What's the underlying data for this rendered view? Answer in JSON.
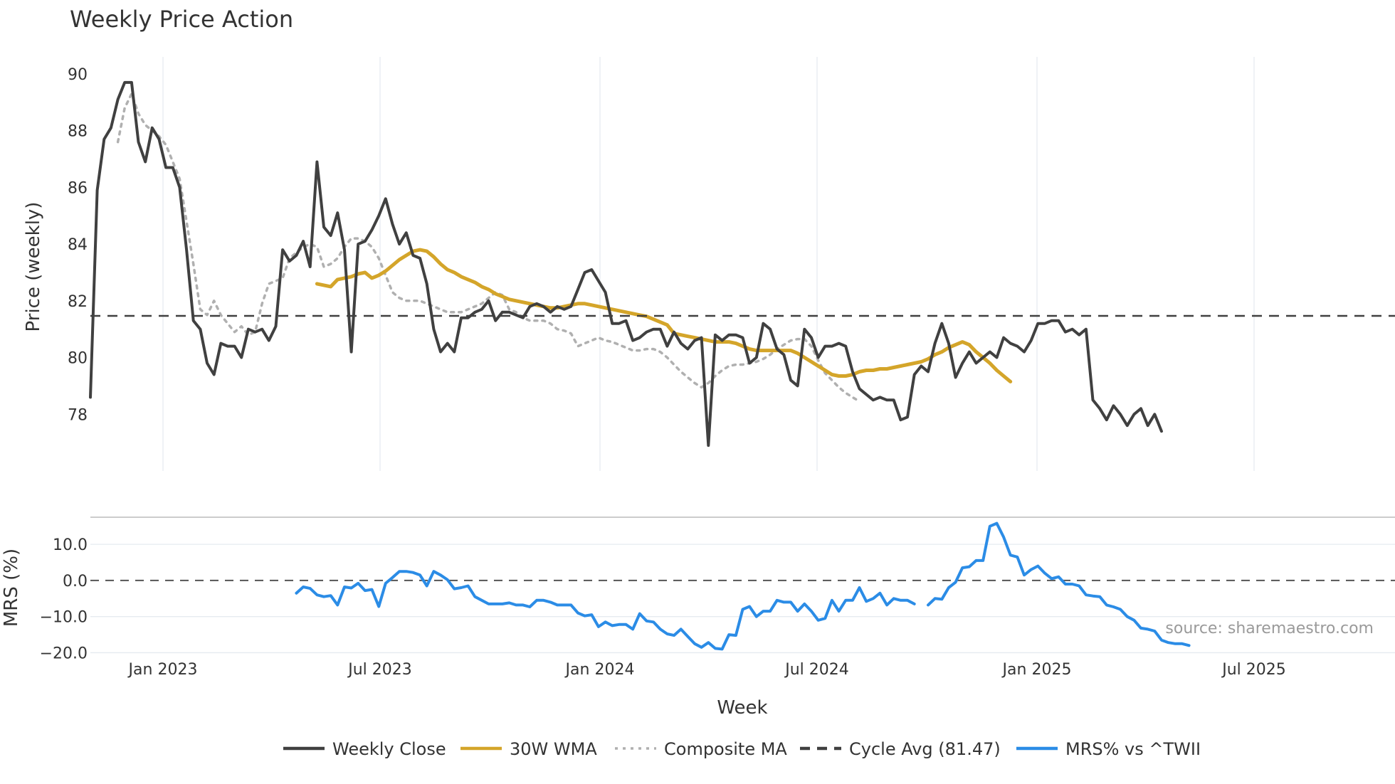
{
  "chart_data": {
    "type": "line",
    "title": "Weekly Price Action",
    "xlabel": "Week",
    "x_ticks": [
      "Jan 2023",
      "Jul 2023",
      "Jan 2024",
      "Jul 2024",
      "Jan 2025",
      "Jul 2025"
    ],
    "x_range_weeks": [
      0,
      190
    ],
    "price_panel": {
      "ylabel": "Price (weekly)",
      "ylim": [
        76.0,
        90.6
      ],
      "y_ticks": [
        "78",
        "80",
        "82",
        "84",
        "86",
        "88",
        "90"
      ],
      "cycle_avg": 81.47
    },
    "mrs_panel": {
      "ylabel": "MRS (%)",
      "ylim": [
        -20.5,
        17.5
      ],
      "y_ticks": [
        "−20.0",
        "−10.0",
        "0.0",
        "10.0"
      ],
      "zero_line": 0
    },
    "series": [
      {
        "name": "Weekly Close",
        "color": "#404040",
        "style": "solid",
        "x_start": 0,
        "values": [
          78.6,
          85.9,
          87.7,
          88.1,
          89.1,
          89.7,
          89.7,
          87.6,
          86.9,
          88.1,
          87.7,
          86.7,
          86.7,
          86.0,
          83.8,
          81.3,
          81.0,
          79.8,
          79.4,
          80.5,
          80.4,
          80.4,
          80.0,
          81.0,
          80.9,
          81.0,
          80.6,
          81.1,
          83.8,
          83.4,
          83.6,
          84.1,
          83.2,
          86.9,
          84.6,
          84.3,
          85.1,
          83.8,
          80.2,
          84.0,
          84.1,
          84.5,
          85.0,
          85.6,
          84.7,
          84.0,
          84.4,
          83.6,
          83.5,
          82.6,
          81.0,
          80.2,
          80.5,
          80.2,
          81.4,
          81.4,
          81.6,
          81.7,
          82.0,
          81.3,
          81.6,
          81.6,
          81.5,
          81.4,
          81.8,
          81.9,
          81.8,
          81.6,
          81.8,
          81.7,
          81.8,
          82.4,
          83.0,
          83.1,
          82.7,
          82.3,
          81.2,
          81.2,
          81.3,
          80.6,
          80.7,
          80.9,
          81.0,
          81.0,
          80.4,
          80.9,
          80.5,
          80.3,
          80.6,
          80.7,
          76.9,
          80.8,
          80.6,
          80.8,
          80.8,
          80.7,
          79.8,
          80.0,
          81.2,
          81.0,
          80.3,
          80.1,
          79.2,
          79.0,
          81.0,
          80.7,
          80.0,
          80.4,
          80.4,
          80.5,
          80.4,
          79.5,
          78.9,
          78.7,
          78.5,
          78.6,
          78.5,
          78.5,
          77.8,
          77.9,
          79.4,
          79.7,
          79.5,
          80.5,
          81.2,
          80.5,
          79.3,
          79.8,
          80.2,
          79.8,
          80.0,
          80.2,
          80.0,
          80.7,
          80.5,
          80.4,
          80.2,
          80.6,
          81.2,
          81.2,
          81.3,
          81.3,
          80.9,
          81.0,
          80.8,
          81.0,
          78.5,
          78.2,
          77.8,
          78.3,
          78.0,
          77.6,
          78.0,
          78.2,
          77.6,
          78.0,
          77.4
        ]
      },
      {
        "name": "30W WMA",
        "color": "#d4a52a",
        "style": "solid",
        "x_start": 33,
        "values": [
          82.6,
          82.55,
          82.5,
          82.75,
          82.8,
          82.85,
          82.95,
          83.0,
          82.8,
          82.9,
          83.05,
          83.25,
          83.45,
          83.6,
          83.75,
          83.8,
          83.75,
          83.55,
          83.3,
          83.1,
          83.0,
          82.85,
          82.75,
          82.65,
          82.5,
          82.4,
          82.25,
          82.15,
          82.05,
          82.0,
          81.95,
          81.9,
          81.85,
          81.8,
          81.75,
          81.75,
          81.8,
          81.85,
          81.9,
          81.9,
          81.85,
          81.8,
          81.75,
          81.7,
          81.65,
          81.6,
          81.55,
          81.5,
          81.45,
          81.35,
          81.25,
          81.15,
          80.85,
          80.8,
          80.75,
          80.7,
          80.65,
          80.6,
          80.55,
          80.55,
          80.55,
          80.5,
          80.4,
          80.3,
          80.25,
          80.25,
          80.25,
          80.25,
          80.25,
          80.25,
          80.15,
          80.0,
          79.85,
          79.7,
          79.55,
          79.4,
          79.35,
          79.35,
          79.4,
          79.5,
          79.55,
          79.55,
          79.6,
          79.6,
          79.65,
          79.7,
          79.75,
          79.8,
          79.85,
          79.95,
          80.1,
          80.2,
          80.35,
          80.45,
          80.55,
          80.45,
          80.2,
          80.0,
          79.8,
          79.55,
          79.35,
          79.15
        ]
      },
      {
        "name": "Composite MA",
        "color": "#b0b0b0",
        "style": "dotted",
        "x_start": 4,
        "values": [
          87.6,
          88.8,
          89.3,
          88.6,
          88.2,
          88.0,
          87.8,
          87.5,
          86.9,
          86.3,
          84.8,
          83.3,
          81.7,
          81.5,
          82.0,
          81.5,
          81.2,
          80.9,
          81.1,
          80.8,
          80.9,
          81.9,
          82.6,
          82.7,
          82.8,
          83.5,
          83.7,
          83.9,
          84.0,
          83.9,
          83.2,
          83.3,
          83.5,
          83.9,
          84.2,
          84.2,
          84.1,
          83.9,
          83.5,
          82.9,
          82.3,
          82.1,
          82.0,
          82.0,
          82.0,
          81.9,
          81.8,
          81.7,
          81.6,
          81.6,
          81.6,
          81.7,
          81.8,
          81.9,
          82.1,
          82.3,
          82.2,
          81.7,
          81.6,
          81.4,
          81.3,
          81.3,
          81.3,
          81.2,
          81.0,
          80.95,
          80.85,
          80.4,
          80.5,
          80.6,
          80.7,
          80.6,
          80.55,
          80.45,
          80.35,
          80.25,
          80.25,
          80.3,
          80.3,
          80.2,
          80.0,
          79.75,
          79.5,
          79.3,
          79.1,
          78.95,
          79.1,
          79.35,
          79.55,
          79.7,
          79.75,
          79.75,
          79.8,
          79.85,
          79.95,
          80.1,
          80.3,
          80.45,
          80.6,
          80.65,
          80.65,
          80.4,
          79.9,
          79.45,
          79.2,
          78.95,
          78.75,
          78.6,
          78.45
        ]
      },
      {
        "name": "Cycle Avg (81.47)",
        "color": "#404040",
        "style": "dashed",
        "value": 81.47
      },
      {
        "name": "MRS% vs ^TWII",
        "color": "#2b8ce6",
        "style": "solid",
        "x_start": 30,
        "values": [
          -3.5,
          -1.8,
          -2.2,
          -4.0,
          -4.5,
          -4.2,
          -6.8,
          -1.8,
          -2.1,
          -0.8,
          -2.8,
          -2.5,
          -7.2,
          -0.8,
          0.8,
          2.5,
          2.5,
          2.2,
          1.5,
          -1.5,
          2.5,
          1.5,
          0.2,
          -2.3,
          -2.0,
          -1.5,
          -4.5,
          -5.5,
          -6.5,
          -6.5,
          -6.5,
          -6.2,
          -6.8,
          -6.8,
          -7.3,
          -5.5,
          -5.5,
          -6.0,
          -6.8,
          -6.8,
          -6.8,
          -9.0,
          -9.8,
          -9.5,
          -12.8,
          -11.5,
          -12.5,
          -12.2,
          -12.2,
          -13.5,
          -9.2,
          -11.2,
          -11.5,
          -13.5,
          -14.8,
          -15.2,
          -13.5,
          -15.5,
          -17.5,
          -18.5,
          -17.2,
          -18.8,
          -19.0,
          -15.0,
          -15.2,
          -8.0,
          -7.2,
          -10.0,
          -8.5,
          -8.5,
          -5.5,
          -6.0,
          -6.0,
          -8.5,
          -6.5,
          -8.5,
          -11.0,
          -10.5,
          -5.5,
          -8.5,
          -5.5,
          -5.5,
          -2.0,
          -5.8,
          -5.0,
          -3.5,
          -6.8,
          -5.0,
          -5.5,
          -5.5,
          -6.5,
          null,
          -6.8,
          -5.0,
          -5.2,
          -2.0,
          -0.5,
          3.5,
          3.8,
          5.5,
          5.5,
          15.0,
          15.8,
          12.0,
          7.0,
          6.5,
          1.5,
          3.0,
          4.0,
          2.0,
          0.5,
          1.0,
          -1.0,
          -1.0,
          -1.5,
          -4.0,
          -4.3,
          -4.5,
          -6.8,
          -7.3,
          -8.0,
          -10.0,
          -11.0,
          -13.2,
          -13.5,
          -14.0,
          -16.5,
          -17.2,
          -17.5,
          -17.5,
          -18.0
        ]
      }
    ],
    "legend": {
      "placement": "bottom-center",
      "entries": [
        "Weekly Close",
        "30W WMA",
        "Composite MA",
        "Cycle Avg (81.47)",
        "MRS% vs ^TWII"
      ]
    },
    "annotation": "source: sharemaestro.com"
  }
}
